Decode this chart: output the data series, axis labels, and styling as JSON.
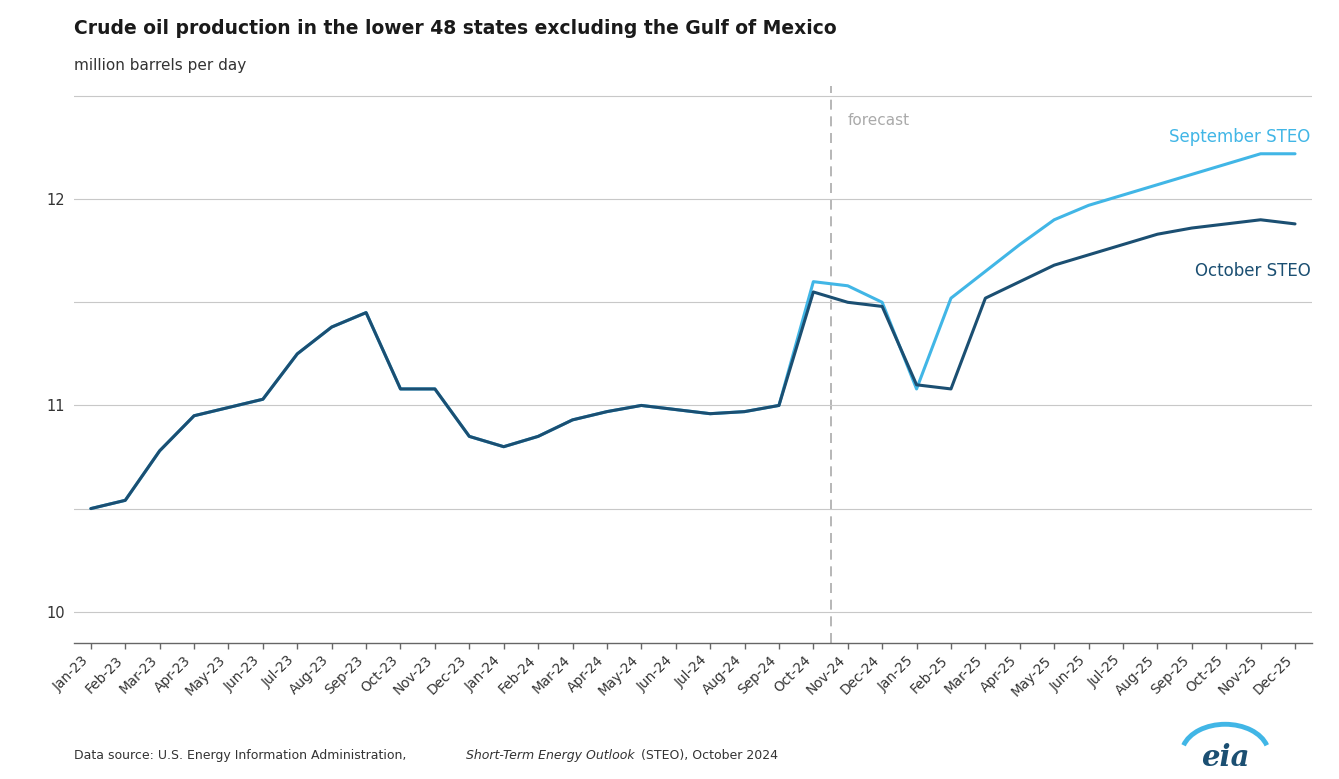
{
  "title": "Crude oil production in the lower 48 states excluding the Gulf of Mexico",
  "ylabel": "million barrels per day",
  "source_prefix": "Data source: U.S. Energy Information Administration, ",
  "source_italic": "Short-Term Energy Outlook",
  "source_suffix": " (STEO), October 2024",
  "ylim": [
    9.85,
    12.55
  ],
  "yticks": [
    10.0,
    10.5,
    11.0,
    11.5,
    12.0,
    12.5
  ],
  "ytick_labels": [
    "10",
    "",
    "11",
    "",
    "12",
    ""
  ],
  "forecast_label": "forecast",
  "legend_sept": "September STEO",
  "legend_oct": "October STEO",
  "sept_color": "#41B6E6",
  "oct_color": "#1B4F72",
  "forecast_line_index": 21,
  "x_labels": [
    "Jan-23",
    "Feb-23",
    "Mar-23",
    "Apr-23",
    "May-23",
    "Jun-23",
    "Jul-23",
    "Aug-23",
    "Sep-23",
    "Oct-23",
    "Nov-23",
    "Dec-23",
    "Jan-24",
    "Feb-24",
    "Mar-24",
    "Apr-24",
    "May-24",
    "Jun-24",
    "Jul-24",
    "Aug-24",
    "Sep-24",
    "Oct-24",
    "Nov-24",
    "Dec-24",
    "Jan-25",
    "Feb-25",
    "Mar-25",
    "Apr-25",
    "May-25",
    "Jun-25",
    "Jul-25",
    "Aug-25",
    "Sep-25",
    "Oct-25",
    "Nov-25",
    "Dec-25"
  ],
  "october_steo": [
    10.5,
    10.54,
    10.78,
    10.95,
    10.99,
    11.03,
    11.25,
    11.38,
    11.45,
    11.08,
    11.08,
    10.85,
    10.8,
    10.85,
    10.93,
    10.97,
    11.0,
    10.98,
    10.96,
    10.97,
    11.0,
    11.55,
    11.5,
    11.48,
    11.1,
    11.08,
    11.52,
    11.6,
    11.68,
    11.73,
    11.78,
    11.83,
    11.86,
    11.88,
    11.9,
    11.88
  ],
  "september_steo": [
    10.5,
    10.54,
    10.78,
    10.95,
    10.99,
    11.03,
    11.25,
    11.38,
    11.45,
    11.08,
    11.08,
    10.85,
    10.8,
    10.85,
    10.93,
    10.97,
    11.0,
    10.98,
    10.96,
    10.97,
    11.0,
    11.6,
    11.58,
    11.5,
    11.08,
    11.52,
    11.65,
    11.78,
    11.9,
    11.97,
    12.02,
    12.07,
    12.12,
    12.17,
    12.22,
    12.22
  ],
  "background_color": "#FFFFFF",
  "grid_color": "#C8C8C8",
  "title_fontsize": 13.5,
  "label_fontsize": 11,
  "tick_fontsize": 10.5
}
